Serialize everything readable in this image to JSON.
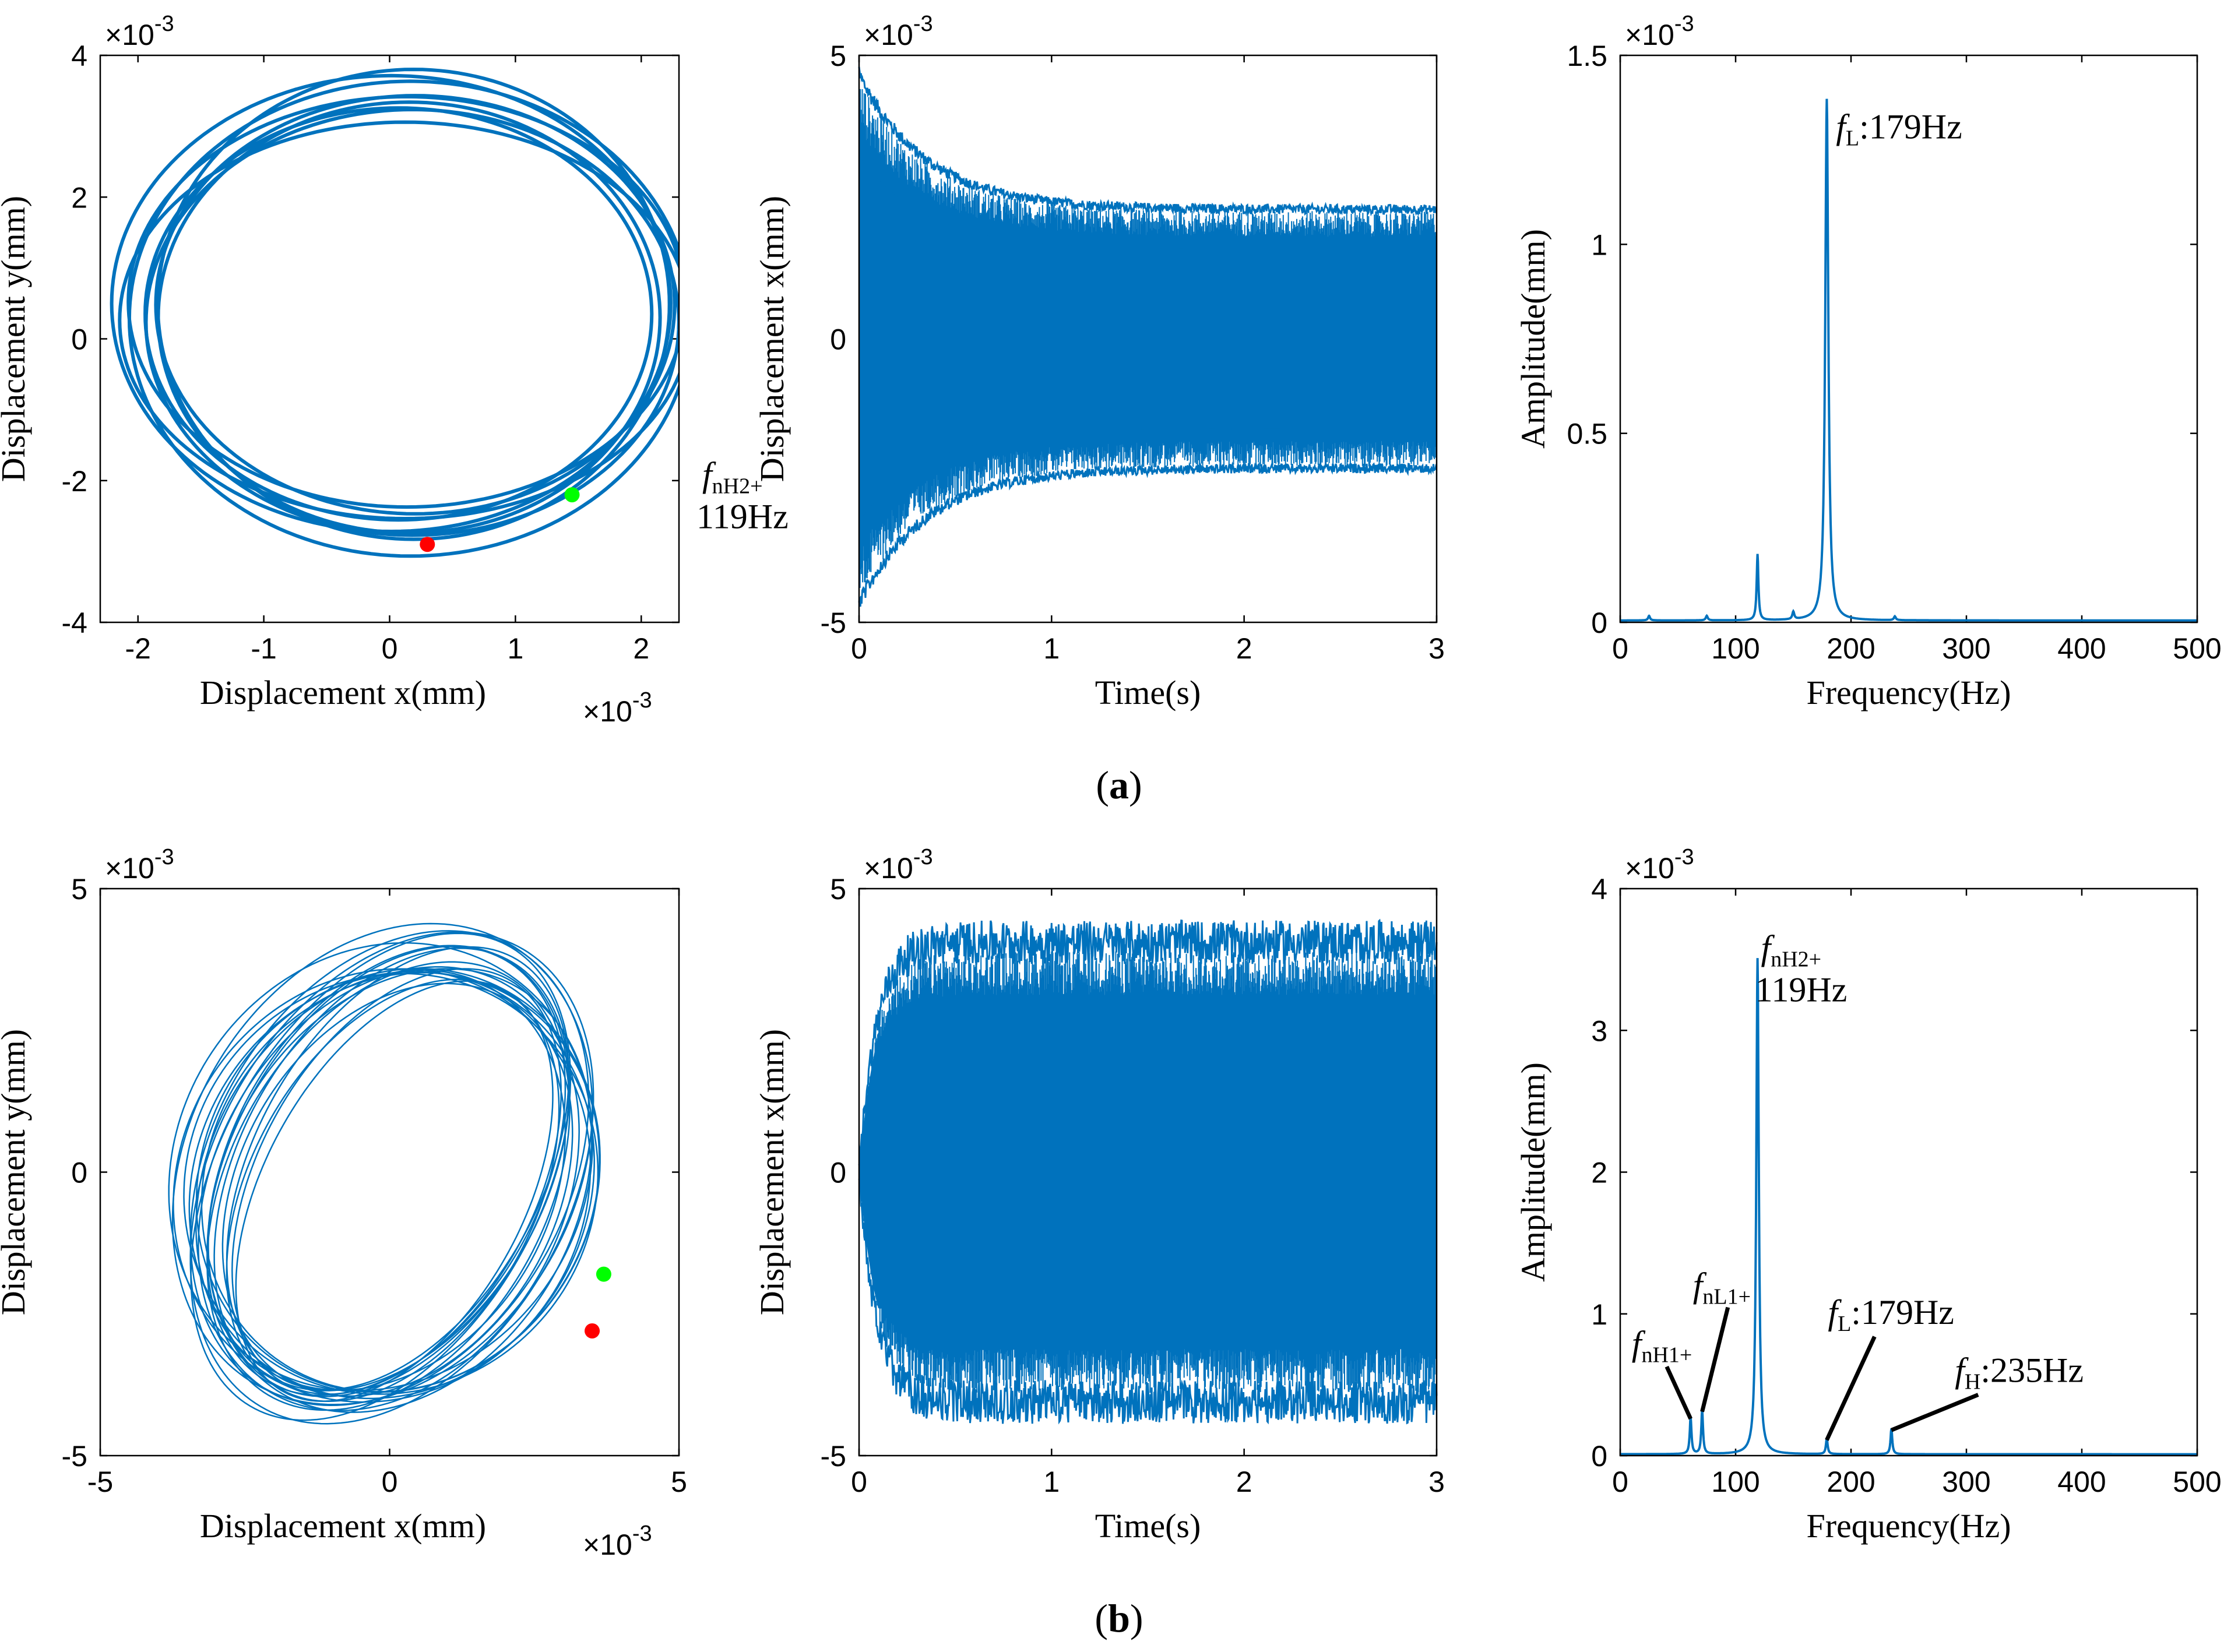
{
  "colors": {
    "series": "#0072BD",
    "start_marker": "#00ff00",
    "end_marker": "#ff0000"
  },
  "captions": {
    "a": "a",
    "b": "b"
  },
  "chart_data": [
    {
      "id": "a1",
      "type": "line",
      "kind": "orbit",
      "xlabel": "Displacement x(mm)",
      "ylabel": "Displacement y(mm)",
      "xlim": [
        -0.0023,
        0.0023
      ],
      "ylim": [
        -0.004,
        0.004
      ],
      "xticks": [
        -0.002,
        -0.001,
        0,
        0.001,
        0.002
      ],
      "xtick_labels": [
        "-2",
        "-1",
        "0",
        "1",
        "2"
      ],
      "yticks": [
        -0.004,
        -0.002,
        0,
        0.002,
        0.004
      ],
      "ytick_labels": [
        "-4",
        "-2",
        "0",
        "2",
        "4"
      ],
      "x_exponent": "×10",
      "x_exponent_power": "-3",
      "y_exponent": "×10",
      "y_exponent_power": "-3",
      "orbit": {
        "cx": 0.0001,
        "cy": 0.00035,
        "rx_range": [
          0.00195,
          0.00235
        ],
        "ry_range": [
          0.00263,
          0.0035
        ],
        "tilt_deg": 0,
        "loops": 9,
        "stroke_width": 6
      },
      "markers": [
        {
          "name": "start-marker",
          "x": 0.00145,
          "y": -0.0022,
          "color": "start"
        },
        {
          "name": "end-marker",
          "x": 0.0003,
          "y": -0.0029,
          "color": "end"
        }
      ]
    },
    {
      "id": "a2",
      "type": "line",
      "kind": "time",
      "xlabel": "Time(s)",
      "ylabel": "Displacement x(mm)",
      "xlim": [
        0,
        3
      ],
      "ylim": [
        -0.005,
        0.005
      ],
      "xticks": [
        0,
        1,
        2,
        3
      ],
      "xtick_labels": [
        "0",
        "1",
        "2",
        "3"
      ],
      "yticks": [
        -0.005,
        0,
        0.005
      ],
      "ytick_labels": [
        "-5",
        "0",
        "5"
      ],
      "y_exponent": "×10",
      "y_exponent_power": "-3",
      "envelope": {
        "start_amp": 0.0046,
        "steady_amp": 0.00225,
        "tau_s": 0.35,
        "ripple": 0.00012,
        "inner_band": 0.0012
      }
    },
    {
      "id": "a3",
      "type": "line",
      "kind": "spectrum",
      "xlabel": "Frequency(Hz)",
      "ylabel": "Amplitude(mm)",
      "xlim": [
        0,
        500
      ],
      "ylim": [
        0,
        0.0015
      ],
      "xticks": [
        0,
        100,
        200,
        300,
        400,
        500
      ],
      "xtick_labels": [
        "0",
        "100",
        "200",
        "300",
        "400",
        "500"
      ],
      "yticks": [
        0,
        0.0005,
        0.001,
        0.0015
      ],
      "ytick_labels": [
        "0",
        "0.5",
        "1",
        "1.5"
      ],
      "y_exponent": "×10",
      "y_exponent_power": "-3",
      "baseline": 5e-06,
      "peaks": [
        {
          "f": 119,
          "a": 0.000175,
          "w": 0.9
        },
        {
          "f": 179,
          "a": 0.00138,
          "w": 1.6
        },
        {
          "f": 150,
          "a": 2e-05,
          "w": 1
        },
        {
          "f": 25,
          "a": 1.2e-05,
          "w": 1
        },
        {
          "f": 75,
          "a": 1.2e-05,
          "w": 1
        },
        {
          "f": 238,
          "a": 1e-05,
          "w": 1
        }
      ],
      "annotations": [
        {
          "name": "annotation-fnH2",
          "f": "f",
          "sub": "nH2+",
          "line2": "119Hz",
          "x": 1205,
          "y": 0.00036
        },
        {
          "name": "annotation-fL",
          "f": "f",
          "sub": "L",
          "rest": ":179Hz",
          "x": 187,
          "y": 0.00128
        }
      ]
    },
    {
      "id": "b1",
      "type": "line",
      "kind": "orbit",
      "xlabel": "Displacement x(mm)",
      "ylabel": "Displacement y(mm)",
      "xlim": [
        -0.005,
        0.005
      ],
      "ylim": [
        -0.005,
        0.005
      ],
      "xticks": [
        -0.005,
        0,
        0.005
      ],
      "xtick_labels": [
        "-5",
        "0",
        "5"
      ],
      "yticks": [
        -0.005,
        0,
        0.005
      ],
      "ytick_labels": [
        "-5",
        "0",
        "5"
      ],
      "x_exponent": "×10",
      "x_exponent_power": "-3",
      "y_exponent": "×10",
      "y_exponent_power": "-3",
      "orbit": {
        "cx": 0,
        "cy": -0.0001,
        "rx_range": [
          0.0021,
          0.0036
        ],
        "ry_range": [
          0.0037,
          0.0047
        ],
        "tilt_deg": -28,
        "loops": 22,
        "stroke_width": 2.5
      },
      "markers": [
        {
          "name": "start-marker",
          "x": 0.0037,
          "y": -0.0018,
          "color": "start"
        },
        {
          "name": "end-marker",
          "x": 0.0035,
          "y": -0.0028,
          "color": "end"
        }
      ]
    },
    {
      "id": "b2",
      "type": "line",
      "kind": "time",
      "xlabel": "Time(s)",
      "ylabel": "Displacement x(mm)",
      "xlim": [
        0,
        3
      ],
      "ylim": [
        -0.005,
        0.005
      ],
      "xticks": [
        0,
        1,
        2,
        3
      ],
      "xtick_labels": [
        "0",
        "1",
        "2",
        "3"
      ],
      "yticks": [
        -0.005,
        0,
        0.005
      ],
      "ytick_labels": [
        "-5",
        "0",
        "5"
      ],
      "y_exponent": "×10",
      "y_exponent_power": "-3",
      "envelope": {
        "start_amp": 0.0,
        "steady_amp": 0.0039,
        "tau_s": 0.09,
        "ripple": 0.00055,
        "inner_band": 0.0024,
        "grow": true
      }
    },
    {
      "id": "b3",
      "type": "line",
      "kind": "spectrum",
      "xlabel": "Frequency(Hz)",
      "ylabel": "Amplitude(mm)",
      "xlim": [
        0,
        500
      ],
      "ylim": [
        0,
        0.004
      ],
      "xticks": [
        0,
        100,
        200,
        300,
        400,
        500
      ],
      "xtick_labels": [
        "0",
        "100",
        "200",
        "300",
        "400",
        "500"
      ],
      "yticks": [
        0,
        0.001,
        0.002,
        0.003,
        0.004
      ],
      "ytick_labels": [
        "0",
        "1",
        "2",
        "3",
        "4"
      ],
      "y_exponent": "×10",
      "y_exponent_power": "-3",
      "baseline": 1e-05,
      "peaks": [
        {
          "f": 119,
          "a": 0.0035,
          "w": 1.3
        },
        {
          "f": 61,
          "a": 0.00026,
          "w": 0.9
        },
        {
          "f": 71,
          "a": 0.00031,
          "w": 0.9
        },
        {
          "f": 179,
          "a": 0.00011,
          "w": 0.9
        },
        {
          "f": 235,
          "a": 0.00018,
          "w": 0.9
        }
      ],
      "annotations": [
        {
          "name": "annotation-fnH2",
          "f": "f",
          "sub": "nH2+",
          "line2": "119Hz",
          "x": 122,
          "y": 0.0035
        },
        {
          "name": "annotation-fnL1",
          "f": "f",
          "sub": "nL1+",
          "x": 63,
          "y": 0.00112,
          "leader_to": [
            71,
            0.00031
          ]
        },
        {
          "name": "annotation-fnH1",
          "f": "f",
          "sub": "nH1+",
          "x": 10,
          "y": 0.00071,
          "leader_to": [
            61,
            0.00026
          ]
        },
        {
          "name": "annotation-fL",
          "f": "f",
          "sub": "L",
          "rest": ":179Hz",
          "x": 180,
          "y": 0.00093,
          "leader_to": [
            179,
            0.00011
          ]
        },
        {
          "name": "annotation-fH",
          "f": "f",
          "sub": "H",
          "rest": ":235Hz",
          "x": 290,
          "y": 0.00052,
          "leader_to": [
            235,
            0.00018
          ]
        }
      ]
    }
  ]
}
